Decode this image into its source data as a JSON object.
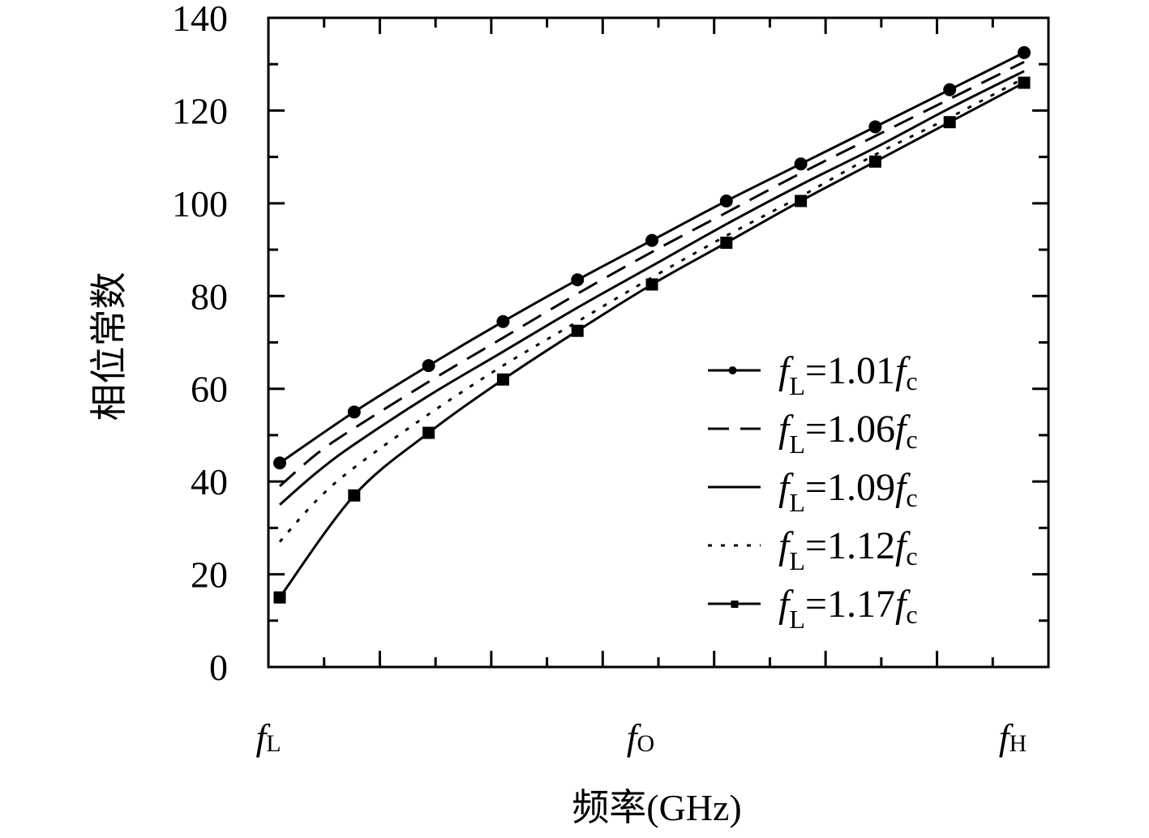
{
  "chart_data": {
    "type": "line",
    "title": "",
    "xlabel": "频率(GHz)",
    "ylabel": "相位常数",
    "xlim": [
      0,
      1
    ],
    "ylim": [
      0,
      140
    ],
    "y_ticks": [
      0,
      20,
      40,
      60,
      80,
      100,
      120,
      140
    ],
    "x_tick_labels": [
      {
        "x": 0.0,
        "main": "f",
        "sub": "L"
      },
      {
        "x": 0.5,
        "main": "f",
        "sub": "O"
      },
      {
        "x": 1.0,
        "main": "f",
        "sub": "H"
      }
    ],
    "legend_position": "center-right",
    "grid": false,
    "series": [
      {
        "name": "fL=1.01fc",
        "label_main": "f",
        "label_sub": "L",
        "label_mid": "=1.01",
        "label_main2": "f",
        "label_sub2": "c",
        "line": "solid",
        "marker": "circle",
        "x": [
          0,
          0.1,
          0.2,
          0.3,
          0.4,
          0.5,
          0.6,
          0.7,
          0.8,
          0.9,
          1.0
        ],
        "y": [
          44,
          55,
          65,
          74.5,
          83.5,
          92,
          100.5,
          108.5,
          116.5,
          124.5,
          132.5
        ]
      },
      {
        "name": "fL=1.06fc",
        "label_main": "f",
        "label_sub": "L",
        "label_mid": "=1.06",
        "label_main2": "f",
        "label_sub2": "c",
        "line": "dashed",
        "marker": "none",
        "x": [
          0,
          0.05,
          0.1,
          0.2,
          0.3,
          0.4,
          0.5,
          0.6,
          0.7,
          0.8,
          0.9,
          1.0
        ],
        "y": [
          39,
          46,
          51.5,
          61.5,
          71,
          80.5,
          89.5,
          98,
          106.5,
          114.5,
          122.5,
          130.5
        ]
      },
      {
        "name": "fL=1.09fc",
        "label_main": "f",
        "label_sub": "L",
        "label_mid": "=1.09",
        "label_main2": "f",
        "label_sub2": "c",
        "line": "solid",
        "marker": "none",
        "x": [
          0,
          0.05,
          0.1,
          0.2,
          0.3,
          0.4,
          0.5,
          0.6,
          0.7,
          0.8,
          0.9,
          1.0
        ],
        "y": [
          35,
          42,
          48,
          58.5,
          68,
          77.5,
          86.5,
          95.5,
          104,
          112,
          120.5,
          128.5
        ]
      },
      {
        "name": "fL=1.12fc",
        "label_main": "f",
        "label_sub": "L",
        "label_mid": "=1.12",
        "label_main2": "f",
        "label_sub2": "c",
        "line": "dotted",
        "marker": "none",
        "x": [
          0,
          0.05,
          0.1,
          0.2,
          0.3,
          0.4,
          0.5,
          0.6,
          0.7,
          0.8,
          0.9,
          1.0
        ],
        "y": [
          27,
          36,
          43,
          54.5,
          65,
          74.5,
          84,
          93,
          101.5,
          110.5,
          118.5,
          127
        ]
      },
      {
        "name": "fL=1.17fc",
        "label_main": "f",
        "label_sub": "L",
        "label_mid": "=1.17",
        "label_main2": "f",
        "label_sub2": "c",
        "line": "solid",
        "marker": "square",
        "x": [
          0,
          0.1,
          0.2,
          0.3,
          0.4,
          0.5,
          0.6,
          0.7,
          0.8,
          0.9,
          1.0
        ],
        "y": [
          15,
          37,
          50.5,
          62,
          72.5,
          82.5,
          91.5,
          100.5,
          109,
          117.5,
          126
        ]
      }
    ]
  }
}
